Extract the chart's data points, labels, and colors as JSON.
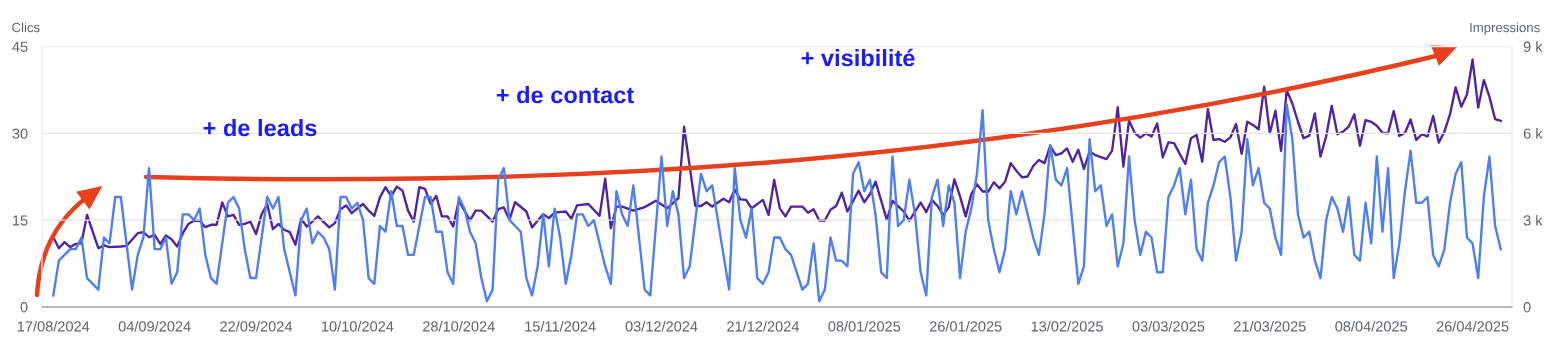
{
  "chart_data": {
    "type": "line",
    "ylabel": "Clics",
    "y2label": "Impressions",
    "annotations": [
      "+ de leads",
      "+ de contact",
      "+ visibilité"
    ],
    "xlim": [
      "2024-08-15",
      "2025-05-03"
    ],
    "xticks": [
      {
        "value": "2024-08-17",
        "label": "17/08/2024"
      },
      {
        "value": "2024-09-04",
        "label": "04/09/2024"
      },
      {
        "value": "2024-09-22",
        "label": "22/09/2024"
      },
      {
        "value": "2024-10-10",
        "label": "10/10/2024"
      },
      {
        "value": "2024-10-28",
        "label": "28/10/2024"
      },
      {
        "value": "2024-11-15",
        "label": "15/11/2024"
      },
      {
        "value": "2024-12-03",
        "label": "03/12/2024"
      },
      {
        "value": "2024-12-21",
        "label": "21/12/2024"
      },
      {
        "value": "2025-01-08",
        "label": "08/01/2025"
      },
      {
        "value": "2025-01-26",
        "label": "26/01/2025"
      },
      {
        "value": "2025-02-13",
        "label": "13/02/2025"
      },
      {
        "value": "2025-03-03",
        "label": "03/03/2025"
      },
      {
        "value": "2025-03-21",
        "label": "21/03/2025"
      },
      {
        "value": "2025-04-08",
        "label": "08/04/2025"
      },
      {
        "value": "2025-04-26",
        "label": "26/04/2025"
      }
    ],
    "ylim": [
      0,
      45
    ],
    "yticks": [
      0,
      15,
      30,
      45
    ],
    "y2lim": [
      0,
      9000
    ],
    "y2ticks": [
      0,
      {
        "value": 3000,
        "label": "3 k"
      },
      {
        "value": 6000,
        "label": "6 k"
      },
      {
        "value": 9000,
        "label": "9 k"
      }
    ],
    "grid": "y",
    "series": [
      {
        "color": "#4d7ef2",
        "x": [
          "2024-08-17",
          "2024-08-18",
          "2024-08-20",
          "2024-08-21",
          "2024-08-22",
          "2024-08-23",
          "2024-08-25",
          "2024-08-26",
          "2024-08-27",
          "2024-08-28",
          "2024-08-29",
          "2024-08-31",
          "2024-09-01",
          "2024-09-02",
          "2024-09-03",
          "2024-09-04",
          "2024-09-05",
          "2024-09-06",
          "2024-09-07",
          "2024-09-08",
          "2024-09-09",
          "2024-09-10",
          "2024-09-11",
          "2024-09-12",
          "2024-09-13",
          "2024-09-14",
          "2024-09-15",
          "2024-09-17",
          "2024-09-18",
          "2024-09-19",
          "2024-09-20",
          "2024-09-21",
          "2024-09-22",
          "2024-09-23",
          "2024-09-24",
          "2024-09-25",
          "2024-09-26",
          "2024-09-27",
          "2024-09-29",
          "2024-09-30",
          "2024-10-01",
          "2024-10-02",
          "2024-10-03",
          "2024-10-04",
          "2024-10-05",
          "2024-10-06",
          "2024-10-07",
          "2024-10-08",
          "2024-10-09",
          "2024-10-10",
          "2024-10-11",
          "2024-10-12",
          "2024-10-13",
          "2024-10-14",
          "2024-10-15",
          "2024-10-16",
          "2024-10-17",
          "2024-10-18",
          "2024-10-19",
          "2024-10-20",
          "2024-10-21",
          "2024-10-22",
          "2024-10-23",
          "2024-10-24",
          "2024-10-25",
          "2024-10-26",
          "2024-10-27",
          "2024-10-28",
          "2024-10-29",
          "2024-10-30",
          "2024-10-31",
          "2024-11-01",
          "2024-11-02",
          "2024-11-03",
          "2024-11-04",
          "2024-11-05",
          "2024-11-06",
          "2024-11-08",
          "2024-11-09",
          "2024-11-10",
          "2024-11-11",
          "2024-11-12",
          "2024-11-13",
          "2024-11-14",
          "2024-11-15",
          "2024-11-16",
          "2024-11-17",
          "2024-11-18",
          "2024-11-19",
          "2024-11-20",
          "2024-11-21",
          "2024-11-23",
          "2024-11-24",
          "2024-11-25",
          "2024-11-26",
          "2024-11-27",
          "2024-11-28",
          "2024-11-30",
          "2024-12-01",
          "2024-12-03",
          "2024-12-04",
          "2024-12-05",
          "2024-12-06",
          "2024-12-07",
          "2024-12-08",
          "2024-12-10",
          "2024-12-11",
          "2024-12-12",
          "2024-12-15",
          "2024-12-16",
          "2024-12-17",
          "2024-12-18",
          "2024-12-19",
          "2024-12-20",
          "2024-12-21",
          "2024-12-22",
          "2024-12-23",
          "2024-12-24",
          "2024-12-25",
          "2024-12-26",
          "2024-12-28",
          "2024-12-29",
          "2024-12-30",
          "2024-12-31",
          "2025-01-01",
          "2025-01-02",
          "2025-01-03",
          "2025-01-04",
          "2025-01-05",
          "2025-01-06",
          "2025-01-07",
          "2025-01-08",
          "2025-01-09",
          "2025-01-10",
          "2025-01-11",
          "2025-01-12",
          "2025-01-13",
          "2025-01-14",
          "2025-01-15",
          "2025-01-16",
          "2025-01-17",
          "2025-01-18",
          "2025-01-19",
          "2025-01-20",
          "2025-01-21",
          "2025-01-22",
          "2025-01-23",
          "2025-01-24",
          "2025-01-25",
          "2025-01-26",
          "2025-01-27",
          "2025-01-28",
          "2025-01-29",
          "2025-01-30",
          "2025-01-31",
          "2025-02-01",
          "2025-02-02",
          "2025-02-03",
          "2025-02-04",
          "2025-02-05",
          "2025-02-07",
          "2025-02-08",
          "2025-02-09",
          "2025-02-10",
          "2025-02-11",
          "2025-02-12",
          "2025-02-13",
          "2025-02-14",
          "2025-02-15",
          "2025-02-16",
          "2025-02-17",
          "2025-02-18",
          "2025-02-19",
          "2025-02-20",
          "2025-02-21",
          "2025-02-22",
          "2025-02-23",
          "2025-02-24",
          "2025-02-25",
          "2025-02-26",
          "2025-02-27",
          "2025-02-28",
          "2025-03-01",
          "2025-03-02",
          "2025-03-03",
          "2025-03-04",
          "2025-03-05",
          "2025-03-06",
          "2025-03-07",
          "2025-03-08",
          "2025-03-09",
          "2025-03-10",
          "2025-03-11",
          "2025-03-12",
          "2025-03-13",
          "2025-03-14",
          "2025-03-15",
          "2025-03-16",
          "2025-03-17",
          "2025-03-18",
          "2025-03-19",
          "2025-03-20",
          "2025-03-21",
          "2025-03-22",
          "2025-03-23",
          "2025-03-24",
          "2025-03-25",
          "2025-03-26",
          "2025-03-27",
          "2025-03-28",
          "2025-03-29",
          "2025-03-30",
          "2025-03-31",
          "2025-04-01",
          "2025-04-02",
          "2025-04-03",
          "2025-04-04",
          "2025-04-05",
          "2025-04-06",
          "2025-04-07",
          "2025-04-08",
          "2025-04-09",
          "2025-04-10",
          "2025-04-11",
          "2025-04-12",
          "2025-04-13",
          "2025-04-14",
          "2025-04-15",
          "2025-04-16",
          "2025-04-17",
          "2025-04-18",
          "2025-04-19",
          "2025-04-20",
          "2025-04-21",
          "2025-04-22",
          "2025-04-23",
          "2025-04-24",
          "2025-04-25",
          "2025-04-26",
          "2025-04-27",
          "2025-04-28",
          "2025-04-29",
          "2025-04-30",
          "2025-05-01"
        ],
        "values": [
          2,
          8,
          10,
          10,
          12,
          5,
          3,
          12,
          11,
          19,
          19,
          3,
          9,
          12,
          24,
          10,
          10,
          12,
          4,
          6,
          16,
          16,
          15,
          17,
          9,
          5,
          4,
          18,
          19,
          17,
          10,
          5,
          5,
          12,
          19,
          17,
          19,
          10,
          2,
          15,
          17,
          11,
          13,
          12,
          10,
          3,
          19,
          19,
          17,
          18,
          15,
          5,
          4,
          14,
          13,
          20,
          14,
          14,
          9,
          9,
          14,
          19,
          19,
          13,
          13,
          6,
          4,
          19,
          17,
          13,
          11,
          5,
          1,
          3,
          22,
          24,
          15,
          13,
          5,
          2,
          7,
          16,
          7,
          17,
          12,
          4,
          9,
          16,
          16,
          14,
          15,
          7,
          4,
          20,
          16,
          14,
          21,
          3,
          2,
          26,
          14,
          20,
          16,
          5,
          7,
          23,
          20,
          21,
          3,
          24,
          15,
          12,
          17,
          5,
          4,
          6,
          12,
          12,
          10,
          9,
          3,
          4,
          11,
          1,
          3,
          12,
          8,
          8,
          7,
          23,
          25,
          20,
          22,
          16,
          6,
          5,
          26,
          14,
          15,
          22,
          16,
          6,
          2,
          19,
          22,
          14,
          21,
          18,
          5,
          13,
          17,
          23,
          34,
          15,
          10,
          6,
          10,
          20,
          16,
          20,
          12,
          9,
          16,
          28,
          22,
          21,
          24,
          14,
          4,
          7,
          29,
          20,
          21,
          14,
          16,
          7,
          11,
          26,
          15,
          9,
          13,
          12,
          6,
          6,
          19,
          21,
          24,
          16,
          22,
          10,
          8,
          18,
          21,
          25,
          26,
          19,
          8,
          13,
          29,
          21,
          24,
          18,
          17,
          12,
          9,
          35,
          29,
          16,
          12,
          13,
          8,
          5,
          15,
          19,
          17,
          13,
          19,
          9,
          8,
          18,
          11,
          26,
          13,
          24,
          5,
          11,
          20,
          27,
          18,
          18,
          19,
          9,
          7,
          10,
          18,
          23,
          25,
          12,
          11,
          5,
          19,
          26,
          14,
          10
        ]
      },
      {
        "color": "#4f24a3",
        "axis": "y2",
        "x": [
          "2024-08-17",
          "2024-08-18",
          "2024-08-19",
          "2024-08-20",
          "2024-08-21",
          "2024-08-22",
          "2024-08-23",
          "2024-08-25",
          "2024-08-26",
          "2024-08-27",
          "2024-08-29",
          "2024-08-30",
          "2024-09-01",
          "2024-09-02",
          "2024-09-03",
          "2024-09-04",
          "2024-09-05",
          "2024-09-06",
          "2024-09-07",
          "2024-09-08",
          "2024-09-09",
          "2024-09-10",
          "2024-09-11",
          "2024-09-12",
          "2024-09-13",
          "2024-09-14",
          "2024-09-15",
          "2024-09-16",
          "2024-09-17",
          "2024-09-18",
          "2024-09-19",
          "2024-09-20",
          "2024-09-21",
          "2024-09-22",
          "2024-09-23",
          "2024-09-24",
          "2024-09-25",
          "2024-09-26",
          "2024-09-27",
          "2024-09-28",
          "2024-09-29",
          "2024-09-30",
          "2024-10-01",
          "2024-10-02",
          "2024-10-03",
          "2024-10-04",
          "2024-10-05",
          "2024-10-06",
          "2024-10-07",
          "2024-10-08",
          "2024-10-09",
          "2024-10-10",
          "2024-10-11",
          "2024-10-12",
          "2024-10-13",
          "2024-10-14",
          "2024-10-15",
          "2024-10-16",
          "2024-10-17",
          "2024-10-18",
          "2024-10-19",
          "2024-10-20",
          "2024-10-21",
          "2024-10-22",
          "2024-10-23",
          "2024-10-24",
          "2024-10-25",
          "2024-10-26",
          "2024-10-27",
          "2024-10-28",
          "2024-10-30",
          "2024-10-31",
          "2024-11-01",
          "2024-11-03",
          "2024-11-04",
          "2024-11-05",
          "2024-11-06",
          "2024-11-07",
          "2024-11-09",
          "2024-11-10",
          "2024-11-12",
          "2024-11-13",
          "2024-11-14",
          "2024-11-16",
          "2024-11-17",
          "2024-11-18",
          "2024-11-20",
          "2024-11-22",
          "2024-11-23",
          "2024-11-24",
          "2024-11-25",
          "2024-11-26",
          "2024-11-28",
          "2024-11-30",
          "2024-12-02",
          "2024-12-04",
          "2024-12-06",
          "2024-12-07",
          "2024-12-09",
          "2024-12-10",
          "2024-12-11",
          "2024-12-12",
          "2024-12-14",
          "2024-12-15",
          "2024-12-16",
          "2024-12-17",
          "2024-12-18",
          "2024-12-19",
          "2024-12-21",
          "2024-12-22",
          "2024-12-23",
          "2024-12-24",
          "2024-12-25",
          "2024-12-26",
          "2024-12-28",
          "2024-12-29",
          "2024-12-30",
          "2024-12-31",
          "2025-01-01",
          "2025-01-02",
          "2025-01-03",
          "2025-01-04",
          "2025-01-05",
          "2025-01-07",
          "2025-01-08",
          "2025-01-09",
          "2025-01-10",
          "2025-01-12",
          "2025-01-13",
          "2025-01-15",
          "2025-01-16",
          "2025-01-18",
          "2025-01-19",
          "2025-01-20",
          "2025-01-21",
          "2025-01-22",
          "2025-01-23",
          "2025-01-24",
          "2025-01-25",
          "2025-01-26",
          "2025-01-27",
          "2025-01-28",
          "2025-01-29",
          "2025-01-30",
          "2025-01-31",
          "2025-02-01",
          "2025-02-02",
          "2025-02-03",
          "2025-02-04",
          "2025-02-05",
          "2025-02-06",
          "2025-02-07",
          "2025-02-08",
          "2025-02-09",
          "2025-02-10",
          "2025-02-11",
          "2025-02-12",
          "2025-02-13",
          "2025-02-14",
          "2025-02-15",
          "2025-02-16",
          "2025-02-17",
          "2025-02-18",
          "2025-02-20",
          "2025-02-21",
          "2025-02-22",
          "2025-02-23",
          "2025-02-24",
          "2025-02-25",
          "2025-02-26",
          "2025-02-27",
          "2025-02-28",
          "2025-03-01",
          "2025-03-02",
          "2025-03-03",
          "2025-03-04",
          "2025-03-05",
          "2025-03-06",
          "2025-03-07",
          "2025-03-08",
          "2025-03-09",
          "2025-03-10",
          "2025-03-11",
          "2025-03-12",
          "2025-03-13",
          "2025-03-14",
          "2025-03-15",
          "2025-03-16",
          "2025-03-17",
          "2025-03-18",
          "2025-03-19",
          "2025-03-20",
          "2025-03-21",
          "2025-03-22",
          "2025-03-23",
          "2025-03-24",
          "2025-03-25",
          "2025-03-26",
          "2025-03-27",
          "2025-03-28",
          "2025-03-29",
          "2025-03-30",
          "2025-03-31",
          "2025-04-01",
          "2025-04-02",
          "2025-04-03",
          "2025-04-04",
          "2025-04-05",
          "2025-04-06",
          "2025-04-07",
          "2025-04-08",
          "2025-04-09",
          "2025-04-10",
          "2025-04-11",
          "2025-04-12",
          "2025-04-13",
          "2025-04-14",
          "2025-04-15",
          "2025-04-16",
          "2025-04-17",
          "2025-04-18",
          "2025-04-19",
          "2025-04-20",
          "2025-04-21",
          "2025-04-22",
          "2025-04-23",
          "2025-04-24",
          "2025-04-25",
          "2025-04-26",
          "2025-04-27",
          "2025-04-28",
          "2025-04-29",
          "2025-04-30",
          "2025-05-01"
        ],
        "values": [
          2410,
          2030,
          2240,
          2070,
          2180,
          2200,
          3180,
          2030,
          2130,
          2070,
          2090,
          2110,
          2550,
          2590,
          2410,
          2490,
          2180,
          2470,
          2340,
          2090,
          2550,
          2870,
          2990,
          2980,
          2760,
          2840,
          2840,
          3610,
          3130,
          3180,
          2840,
          2870,
          2950,
          2520,
          3210,
          3560,
          2690,
          2870,
          2670,
          2590,
          2150,
          3050,
          2780,
          2950,
          3130,
          2930,
          2750,
          2900,
          3380,
          3510,
          3240,
          3410,
          3560,
          3330,
          3150,
          3790,
          4140,
          3820,
          4160,
          4020,
          3330,
          2950,
          4140,
          4080,
          3560,
          3840,
          3130,
          3130,
          2780,
          3670,
          2990,
          3330,
          3330,
          2950,
          3380,
          3440,
          3010,
          3620,
          3300,
          2750,
          3210,
          3070,
          3260,
          3300,
          3050,
          3510,
          3560,
          3150,
          4430,
          2720,
          3470,
          3470,
          3330,
          3450,
          3670,
          3410,
          3760,
          6230,
          3490,
          3490,
          3620,
          3470,
          3740,
          3620,
          4050,
          3720,
          3700,
          3410,
          3700,
          3180,
          4390,
          3410,
          3130,
          3470,
          3470,
          3260,
          3380,
          2990,
          2990,
          3360,
          3490,
          3950,
          3300,
          4020,
          3620,
          3900,
          4330,
          3010,
          3670,
          3300,
          2980,
          3610,
          3280,
          3700,
          3490,
          3180,
          3450,
          4410,
          3820,
          3130,
          3900,
          4240,
          3990,
          3990,
          4310,
          4100,
          4330,
          4970,
          4710,
          4480,
          4510,
          4870,
          5080,
          4970,
          5570,
          5250,
          5310,
          5480,
          5020,
          5430,
          4770,
          5370,
          5250,
          5110,
          5400,
          6900,
          4850,
          6440,
          6020,
          5850,
          6000,
          5890,
          6340,
          5170,
          5690,
          5660,
          5290,
          4940,
          5830,
          5940,
          5020,
          6840,
          5770,
          5800,
          5710,
          5860,
          6320,
          5290,
          6400,
          6290,
          6140,
          7610,
          6000,
          6780,
          5390,
          7490,
          7030,
          6400,
          5830,
          5920,
          6690,
          5200,
          5890,
          6950,
          5970,
          6060,
          6230,
          6660,
          5570,
          6460,
          6400,
          6260,
          6020,
          6000,
          6770,
          5910,
          6020,
          6480,
          5770,
          5970,
          5890,
          6600,
          5680,
          6060,
          6660,
          7590,
          6920,
          7340,
          8550,
          6890,
          7840,
          7260,
          6490,
          6430
        ]
      }
    ]
  }
}
